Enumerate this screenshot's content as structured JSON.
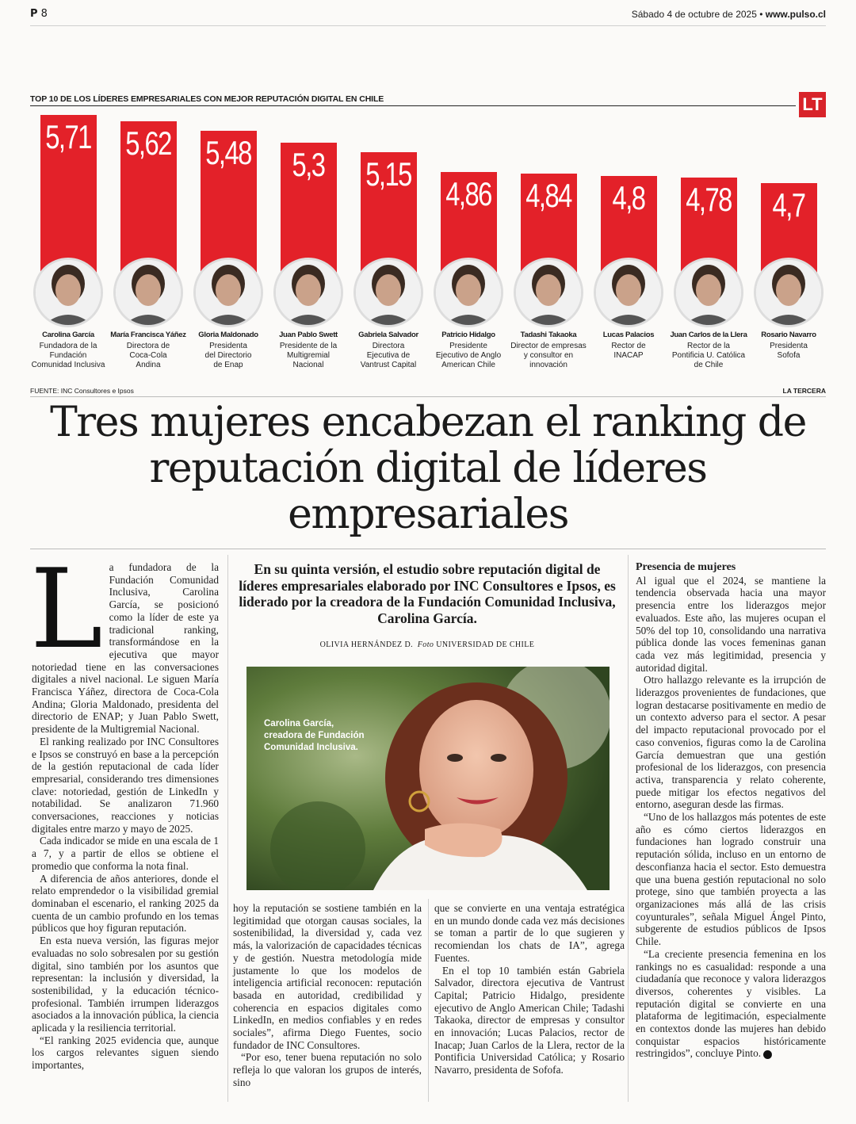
{
  "header": {
    "page_label": "P",
    "page_number": "8",
    "date": "Sábado 4 de octubre de 2025",
    "separator": " • ",
    "site": "www.pulso.cl"
  },
  "chart_block": {
    "title": "TOP 10 DE LOS LÍDERES EMPRESARIALES CON MEJOR REPUTACIÓN DIGITAL EN CHILE",
    "logo": "LT",
    "source": "FUENTE: INC Consultores e Ipsos",
    "credit": "LA TERCERA"
  },
  "chart_data": {
    "type": "bar",
    "categories": [
      "Carolina García",
      "María Francisca Yáñez",
      "Gloria Maldonado",
      "Juan Pablo Swett",
      "Gabriela Salvador",
      "Patricio Hidalgo",
      "Tadashi Takaoka",
      "Lucas Palacios",
      "Juan Carlos de la Llera",
      "Rosario Navarro"
    ],
    "values": [
      5.71,
      5.62,
      5.48,
      5.3,
      5.15,
      4.86,
      4.84,
      4.8,
      4.78,
      4.7
    ],
    "value_labels": [
      "5,71",
      "5,62",
      "5,48",
      "5,3",
      "5,15",
      "4,86",
      "4,84",
      "4,8",
      "4,78",
      "4,7"
    ],
    "roles": [
      [
        "Fundadora de la",
        "Fundación",
        "Comunidad Inclusiva"
      ],
      [
        "Directora de",
        "Coca-Cola",
        "Andina"
      ],
      [
        "Presidenta",
        "del Directorio",
        "de Enap"
      ],
      [
        "Presidente de la",
        "Multigremial",
        "Nacional"
      ],
      [
        "Directora",
        "Ejecutiva de",
        "Vantrust Capital"
      ],
      [
        "Presidente",
        "Ejecutivo de Anglo",
        "American Chile"
      ],
      [
        "Director de empresas",
        "y consultor en",
        "innovación"
      ],
      [
        "Rector de",
        "INACAP"
      ],
      [
        "Rector de la",
        "Pontificia U. Católica",
        "de Chile"
      ],
      [
        "Presidenta",
        "Sofofa"
      ]
    ],
    "title": "TOP 10 DE LOS LÍDERES EMPRESARIALES CON MEJOR REPUTACIÓN DIGITAL EN CHILE",
    "bar_color": "#e32129"
  },
  "headline": "Tres mujeres encabezan el ranking de reputación digital de líderes empresariales",
  "deck": "En su quinta versión, el estudio sobre reputación digital de líderes empresariales elaborado por INC Consultores e Ipsos, es liderado por la creadora de la Fundación Comunidad Inclusiva, Carolina García.",
  "byline": {
    "author": "OLIVIA HERNÁNDEZ D.",
    "photo_label": "Foto",
    "photo_credit": "UNIVERSIDAD DE CHILE"
  },
  "photo_caption": "Carolina García, creadora de Fundación Comunidad Inclusiva.",
  "col1": {
    "dropcap": "L",
    "paragraphs": [
      "a fundadora de la Fundación Comunidad Inclusiva, Carolina García, se posicionó como la líder de este ya tradicional ranking, transformándose en la ejecutiva que mayor notoriedad tiene en las conversaciones digitales a nivel nacional. Le siguen María Francisca Yáñez, directora de Coca-Cola Andina; Gloria Maldonado, presidenta del directorio de ENAP; y Juan Pablo Swett, presidente de la Multigremial Nacional.",
      "El ranking realizado por INC Consultores e Ipsos se construyó en base a la percepción de la gestión reputacional de cada líder empresarial, considerando tres dimensiones clave: notoriedad, gestión de LinkedIn y notabilidad. Se analizaron 71.960 conversaciones, reacciones y noticias digitales entre marzo y mayo de 2025.",
      "Cada indicador se mide en una escala de 1 a 7, y a partir de ellos se obtiene el promedio que conforma la nota final.",
      "A diferencia de años anteriores, donde el relato emprendedor o la visibilidad gremial dominaban el escenario, el ranking 2025 da cuenta de un cambio profundo en los temas públicos que hoy figuran reputación.",
      "En esta nueva versión, las figuras mejor evaluadas no solo sobresalen por su gestión digital, sino también por los asuntos que representan: la inclusión y diversidad, la sostenibilidad, y la educación técnico-profesional. También irrumpen liderazgos asociados a la innovación pública, la ciencia aplicada y la resiliencia territorial.",
      "“El ranking 2025 evidencia que, aunque los cargos relevantes siguen siendo importantes,"
    ]
  },
  "col2": {
    "paragraphs": [
      "hoy la reputación se sostiene también en la legitimidad que otorgan causas sociales, la sostenibilidad, la diversidad y, cada vez más, la valorización de capacidades técnicas y de gestión. Nuestra metodología mide justamente lo que los modelos de inteligencia artificial reconocen: reputación basada en autoridad, credibilidad y coherencia en espacios digitales como LinkedIn, en medios confiables y en redes sociales”, afirma Diego Fuentes, socio fundador de INC Consultores.",
      "“Por eso, tener buena reputación no solo refleja lo que valoran los grupos de interés, sino"
    ]
  },
  "col3": {
    "paragraphs": [
      "que se convierte en una ventaja estratégica en un mundo donde cada vez más decisiones se toman a partir de lo que sugieren y recomiendan los chats de IA”, agrega Fuentes.",
      "En el top 10 también están Gabriela Salvador, directora ejecutiva de Vantrust Capital; Patricio Hidalgo, presidente ejecutivo de Anglo American Chile; Tadashi Takaoka, director de empresas y consultor en innovación; Lucas Palacios, rector de Inacap; Juan Carlos de la Llera, rector de la Pontificia Universidad Católica; y Rosario Navarro, presidenta de Sofofa."
    ]
  },
  "col4": {
    "subhead": "Presencia de mujeres",
    "paragraphs": [
      "Al igual que el 2024, se mantiene la tendencia observada hacia una mayor presencia entre los liderazgos mejor evaluados. Este año, las mujeres ocupan el 50% del top 10, consolidando una narrativa pública donde las voces femeninas ganan cada vez más legitimidad, presencia y autoridad digital.",
      "Otro hallazgo relevante es la irrupción de liderazgos provenientes de fundaciones, que logran destacarse positivamente en medio de un contexto adverso para el sector. A pesar del impacto reputacional provocado por el caso convenios, figuras como la de Carolina García demuestran que una gestión profesional de los liderazgos, con presencia activa, transparencia y relato coherente, puede mitigar los efectos negativos del entorno, aseguran desde las firmas.",
      "“Uno de los hallazgos más potentes de este año es cómo ciertos liderazgos en fundaciones han logrado construir una reputación sólida, incluso en un entorno de desconfianza hacia el sector. Esto demuestra que una buena gestión reputacional no solo protege, sino que también proyecta a las organizaciones más allá de las crisis coyunturales”, señala Miguel Ángel Pinto, subgerente de estudios públicos de Ipsos Chile.",
      "“La creciente presencia femenina en los rankings no es casualidad: responde a una ciudadanía que reconoce y valora liderazgos diversos, coherentes y visibles. La reputación digital se convierte en una plataforma de legitimación, especialmente en contextos donde las mujeres han debido conquistar espacios históricamente restringidos”, concluye Pinto."
    ],
    "end_mark": "P"
  }
}
